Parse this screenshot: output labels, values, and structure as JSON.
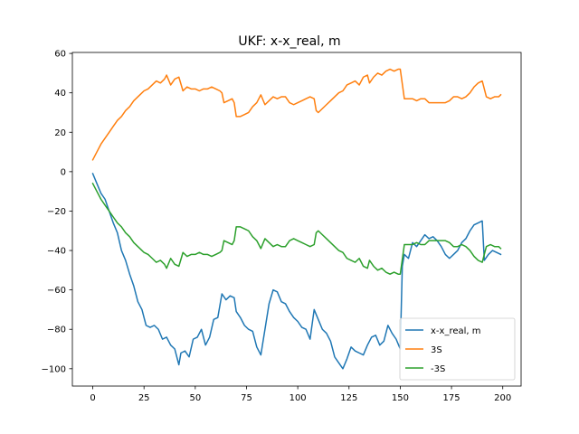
{
  "chart_data": {
    "type": "line",
    "title": "UKF: x-x_real, m",
    "xlabel": "",
    "ylabel": "",
    "xlim": [
      -9.95,
      208.95
    ],
    "ylim": [
      -108.8,
      60.5
    ],
    "xticks": [
      0,
      25,
      50,
      75,
      100,
      125,
      150,
      175,
      200
    ],
    "yticks": [
      -100,
      -80,
      -60,
      -40,
      -20,
      0,
      20,
      40,
      60
    ],
    "xtick_labels": [
      "0",
      "25",
      "50",
      "75",
      "100",
      "125",
      "150",
      "175",
      "200"
    ],
    "ytick_labels": [
      "−100",
      "−80",
      "−60",
      "−40",
      "−20",
      "0",
      "20",
      "40",
      "60"
    ],
    "grid": false,
    "legend_position": "lower right",
    "series": [
      {
        "name": "x-x_real, m",
        "color": "#1f77b4",
        "points": [
          [
            0,
            -1
          ],
          [
            2,
            -6
          ],
          [
            4,
            -11
          ],
          [
            6,
            -14
          ],
          [
            8,
            -20
          ],
          [
            10,
            -26
          ],
          [
            12,
            -31
          ],
          [
            14,
            -40
          ],
          [
            16,
            -45
          ],
          [
            18,
            -52
          ],
          [
            20,
            -58
          ],
          [
            22,
            -66
          ],
          [
            24,
            -70
          ],
          [
            25,
            -74
          ],
          [
            26,
            -78
          ],
          [
            28,
            -79
          ],
          [
            30,
            -78
          ],
          [
            32,
            -80
          ],
          [
            34,
            -85
          ],
          [
            36,
            -84
          ],
          [
            38,
            -88
          ],
          [
            40,
            -90
          ],
          [
            42,
            -98
          ],
          [
            43,
            -92
          ],
          [
            45,
            -91
          ],
          [
            47,
            -94
          ],
          [
            49,
            -85
          ],
          [
            51,
            -84
          ],
          [
            53,
            -80
          ],
          [
            55,
            -88
          ],
          [
            57,
            -84
          ],
          [
            59,
            -75
          ],
          [
            61,
            -74
          ],
          [
            63,
            -62
          ],
          [
            65,
            -65
          ],
          [
            67,
            -63
          ],
          [
            69,
            -64
          ],
          [
            70,
            -71
          ],
          [
            72,
            -74
          ],
          [
            74,
            -78
          ],
          [
            76,
            -80
          ],
          [
            78,
            -81
          ],
          [
            80,
            -89
          ],
          [
            82,
            -93
          ],
          [
            84,
            -80
          ],
          [
            86,
            -67
          ],
          [
            88,
            -60
          ],
          [
            90,
            -61
          ],
          [
            92,
            -66
          ],
          [
            94,
            -67
          ],
          [
            96,
            -71
          ],
          [
            98,
            -74
          ],
          [
            100,
            -76
          ],
          [
            102,
            -79
          ],
          [
            104,
            -80
          ],
          [
            106,
            -85
          ],
          [
            108,
            -70
          ],
          [
            110,
            -75
          ],
          [
            112,
            -80
          ],
          [
            114,
            -82
          ],
          [
            116,
            -86
          ],
          [
            118,
            -94
          ],
          [
            120,
            -97
          ],
          [
            122,
            -100
          ],
          [
            124,
            -95
          ],
          [
            126,
            -89
          ],
          [
            128,
            -91
          ],
          [
            130,
            -92
          ],
          [
            132,
            -93
          ],
          [
            134,
            -88
          ],
          [
            136,
            -84
          ],
          [
            138,
            -83
          ],
          [
            140,
            -88
          ],
          [
            142,
            -86
          ],
          [
            144,
            -78
          ],
          [
            146,
            -82
          ],
          [
            148,
            -85
          ],
          [
            150,
            -90
          ],
          [
            151,
            -48
          ],
          [
            152,
            -42
          ],
          [
            154,
            -44
          ],
          [
            156,
            -36
          ],
          [
            158,
            -38
          ],
          [
            160,
            -35
          ],
          [
            162,
            -32
          ],
          [
            164,
            -34
          ],
          [
            166,
            -33
          ],
          [
            168,
            -35
          ],
          [
            170,
            -38
          ],
          [
            172,
            -42
          ],
          [
            174,
            -44
          ],
          [
            176,
            -42
          ],
          [
            178,
            -40
          ],
          [
            180,
            -36
          ],
          [
            182,
            -34
          ],
          [
            184,
            -30
          ],
          [
            186,
            -27
          ],
          [
            188,
            -26
          ],
          [
            190,
            -25
          ],
          [
            191,
            -45
          ],
          [
            193,
            -42
          ],
          [
            195,
            -40
          ],
          [
            197,
            -41
          ],
          [
            199,
            -42
          ]
        ]
      },
      {
        "name": "3S",
        "color": "#ff7f0e",
        "points": [
          [
            0,
            6
          ],
          [
            2,
            10
          ],
          [
            4,
            14
          ],
          [
            6,
            17
          ],
          [
            8,
            20
          ],
          [
            10,
            23
          ],
          [
            12,
            26
          ],
          [
            14,
            28
          ],
          [
            16,
            31
          ],
          [
            18,
            33
          ],
          [
            20,
            36
          ],
          [
            22,
            38
          ],
          [
            24,
            40
          ],
          [
            25,
            41
          ],
          [
            27,
            42
          ],
          [
            29,
            44
          ],
          [
            31,
            46
          ],
          [
            33,
            45
          ],
          [
            35,
            47
          ],
          [
            36,
            49
          ],
          [
            38,
            44
          ],
          [
            40,
            47
          ],
          [
            42,
            48
          ],
          [
            44,
            41
          ],
          [
            46,
            43
          ],
          [
            48,
            42
          ],
          [
            50,
            42
          ],
          [
            52,
            41
          ],
          [
            54,
            42
          ],
          [
            56,
            42
          ],
          [
            58,
            43
          ],
          [
            60,
            42
          ],
          [
            62,
            41
          ],
          [
            63,
            40
          ],
          [
            64,
            35
          ],
          [
            66,
            36
          ],
          [
            68,
            37
          ],
          [
            69,
            35
          ],
          [
            70,
            28
          ],
          [
            72,
            28
          ],
          [
            74,
            29
          ],
          [
            76,
            30
          ],
          [
            78,
            33
          ],
          [
            80,
            35
          ],
          [
            82,
            39
          ],
          [
            84,
            34
          ],
          [
            86,
            36
          ],
          [
            88,
            38
          ],
          [
            90,
            37
          ],
          [
            92,
            38
          ],
          [
            94,
            38
          ],
          [
            96,
            35
          ],
          [
            98,
            34
          ],
          [
            100,
            35
          ],
          [
            102,
            36
          ],
          [
            104,
            37
          ],
          [
            106,
            38
          ],
          [
            108,
            37
          ],
          [
            109,
            31
          ],
          [
            110,
            30
          ],
          [
            112,
            32
          ],
          [
            114,
            34
          ],
          [
            116,
            36
          ],
          [
            118,
            38
          ],
          [
            120,
            40
          ],
          [
            122,
            41
          ],
          [
            124,
            44
          ],
          [
            126,
            45
          ],
          [
            128,
            46
          ],
          [
            130,
            44
          ],
          [
            132,
            48
          ],
          [
            134,
            49
          ],
          [
            135,
            45
          ],
          [
            137,
            48
          ],
          [
            139,
            50
          ],
          [
            141,
            49
          ],
          [
            143,
            51
          ],
          [
            145,
            52
          ],
          [
            147,
            51
          ],
          [
            149,
            52
          ],
          [
            150,
            52
          ],
          [
            152,
            37
          ],
          [
            154,
            37
          ],
          [
            156,
            37
          ],
          [
            158,
            36
          ],
          [
            160,
            37
          ],
          [
            162,
            37
          ],
          [
            164,
            35
          ],
          [
            166,
            35
          ],
          [
            168,
            35
          ],
          [
            170,
            35
          ],
          [
            172,
            35
          ],
          [
            174,
            36
          ],
          [
            176,
            38
          ],
          [
            178,
            38
          ],
          [
            180,
            37
          ],
          [
            182,
            38
          ],
          [
            184,
            40
          ],
          [
            186,
            43
          ],
          [
            188,
            45
          ],
          [
            190,
            46
          ],
          [
            192,
            38
          ],
          [
            194,
            37
          ],
          [
            196,
            38
          ],
          [
            198,
            38
          ],
          [
            199,
            39
          ]
        ]
      },
      {
        "name": "-3S",
        "color": "#2ca02c",
        "points": [
          [
            0,
            -6
          ],
          [
            2,
            -10
          ],
          [
            4,
            -14
          ],
          [
            6,
            -17
          ],
          [
            8,
            -20
          ],
          [
            10,
            -23
          ],
          [
            12,
            -26
          ],
          [
            14,
            -28
          ],
          [
            16,
            -31
          ],
          [
            18,
            -33
          ],
          [
            20,
            -36
          ],
          [
            22,
            -38
          ],
          [
            24,
            -40
          ],
          [
            25,
            -41
          ],
          [
            27,
            -42
          ],
          [
            29,
            -44
          ],
          [
            31,
            -46
          ],
          [
            33,
            -45
          ],
          [
            35,
            -47
          ],
          [
            36,
            -49
          ],
          [
            38,
            -44
          ],
          [
            40,
            -47
          ],
          [
            42,
            -48
          ],
          [
            44,
            -41
          ],
          [
            46,
            -43
          ],
          [
            48,
            -42
          ],
          [
            50,
            -42
          ],
          [
            52,
            -41
          ],
          [
            54,
            -42
          ],
          [
            56,
            -42
          ],
          [
            58,
            -43
          ],
          [
            60,
            -42
          ],
          [
            62,
            -41
          ],
          [
            63,
            -40
          ],
          [
            64,
            -35
          ],
          [
            66,
            -36
          ],
          [
            68,
            -37
          ],
          [
            69,
            -35
          ],
          [
            70,
            -28
          ],
          [
            72,
            -28
          ],
          [
            74,
            -29
          ],
          [
            76,
            -30
          ],
          [
            78,
            -33
          ],
          [
            80,
            -35
          ],
          [
            82,
            -39
          ],
          [
            84,
            -34
          ],
          [
            86,
            -36
          ],
          [
            88,
            -38
          ],
          [
            90,
            -37
          ],
          [
            92,
            -38
          ],
          [
            94,
            -38
          ],
          [
            96,
            -35
          ],
          [
            98,
            -34
          ],
          [
            100,
            -35
          ],
          [
            102,
            -36
          ],
          [
            104,
            -37
          ],
          [
            106,
            -38
          ],
          [
            108,
            -37
          ],
          [
            109,
            -31
          ],
          [
            110,
            -30
          ],
          [
            112,
            -32
          ],
          [
            114,
            -34
          ],
          [
            116,
            -36
          ],
          [
            118,
            -38
          ],
          [
            120,
            -40
          ],
          [
            122,
            -41
          ],
          [
            124,
            -44
          ],
          [
            126,
            -45
          ],
          [
            128,
            -46
          ],
          [
            130,
            -44
          ],
          [
            132,
            -48
          ],
          [
            134,
            -49
          ],
          [
            135,
            -45
          ],
          [
            137,
            -48
          ],
          [
            139,
            -50
          ],
          [
            141,
            -49
          ],
          [
            143,
            -51
          ],
          [
            145,
            -52
          ],
          [
            147,
            -51
          ],
          [
            149,
            -52
          ],
          [
            150,
            -52
          ],
          [
            152,
            -37
          ],
          [
            154,
            -37
          ],
          [
            156,
            -37
          ],
          [
            158,
            -36
          ],
          [
            160,
            -37
          ],
          [
            162,
            -37
          ],
          [
            164,
            -35
          ],
          [
            166,
            -35
          ],
          [
            168,
            -35
          ],
          [
            170,
            -35
          ],
          [
            172,
            -35
          ],
          [
            174,
            -36
          ],
          [
            176,
            -38
          ],
          [
            178,
            -38
          ],
          [
            180,
            -37
          ],
          [
            182,
            -38
          ],
          [
            184,
            -40
          ],
          [
            186,
            -43
          ],
          [
            188,
            -45
          ],
          [
            190,
            -46
          ],
          [
            192,
            -38
          ],
          [
            194,
            -37
          ],
          [
            196,
            -38
          ],
          [
            198,
            -38
          ],
          [
            199,
            -39
          ]
        ]
      }
    ]
  }
}
